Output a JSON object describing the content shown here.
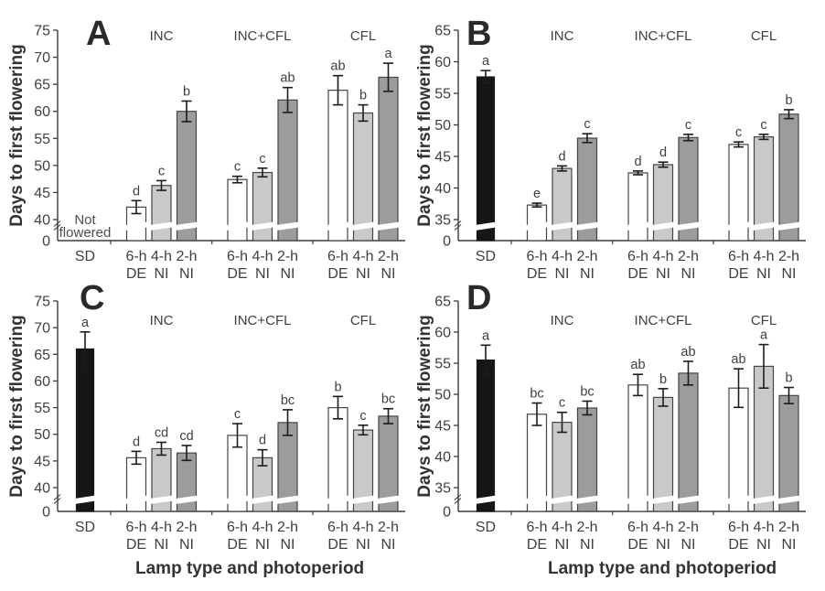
{
  "figure": {
    "xlabel": "Lamp type and photoperiod",
    "ylabel": "Days to first flowering",
    "panel_labels": [
      "A",
      "B",
      "C",
      "D"
    ]
  },
  "colors": {
    "black": "#161616",
    "white": "#ffffff",
    "light": "#c9c9c9",
    "dark": "#9c9c9c",
    "stroke": "#454545",
    "axis": "#3a3a3a",
    "text": "#3f3f3f",
    "error": "#1c1c1c",
    "background": "#ffffff"
  },
  "shade_key": {
    "SD": "black",
    "6-h DE": "white",
    "4-h NI": "light",
    "2-h NI": "dark"
  },
  "chart_data": [
    {
      "panel": "A",
      "type": "bar",
      "ylabel": "Days to first flowering",
      "xlabel": "",
      "ylim": [
        40,
        75
      ],
      "yticks": [
        75,
        70,
        65,
        60,
        55,
        50,
        45,
        40
      ],
      "baseline_tick_label": "0",
      "axis_break": true,
      "grid": false,
      "group_headers": [
        "INC",
        "INC+CFL",
        "CFL"
      ],
      "bars": [
        {
          "tick": "SD",
          "tick2": "",
          "group": "",
          "shade": "black",
          "value": null,
          "err": null,
          "letter": "",
          "note": "Not flowered"
        },
        {
          "tick": "6-h",
          "tick2": "DE",
          "group": "INC",
          "shade": "white",
          "value": 42.3,
          "err": 1.2,
          "letter": "d"
        },
        {
          "tick": "4-h",
          "tick2": "NI",
          "group": "INC",
          "shade": "light",
          "value": 46.3,
          "err": 0.9,
          "letter": "c"
        },
        {
          "tick": "2-h",
          "tick2": "NI",
          "group": "INC",
          "shade": "dark",
          "value": 60.0,
          "err": 1.9,
          "letter": "b"
        },
        {
          "tick": "6-h",
          "tick2": "DE",
          "group": "INC+CFL",
          "shade": "white",
          "value": 47.4,
          "err": 0.6,
          "letter": "c"
        },
        {
          "tick": "4-h",
          "tick2": "NI",
          "group": "INC+CFL",
          "shade": "light",
          "value": 48.7,
          "err": 0.8,
          "letter": "c"
        },
        {
          "tick": "2-h",
          "tick2": "NI",
          "group": "INC+CFL",
          "shade": "dark",
          "value": 62.1,
          "err": 2.3,
          "letter": "ab"
        },
        {
          "tick": "6-h",
          "tick2": "DE",
          "group": "CFL",
          "shade": "white",
          "value": 63.9,
          "err": 2.7,
          "letter": "ab"
        },
        {
          "tick": "4-h",
          "tick2": "NI",
          "group": "CFL",
          "shade": "light",
          "value": 59.7,
          "err": 1.5,
          "letter": "b"
        },
        {
          "tick": "2-h",
          "tick2": "NI",
          "group": "CFL",
          "shade": "dark",
          "value": 66.3,
          "err": 2.6,
          "letter": "a"
        }
      ]
    },
    {
      "panel": "B",
      "type": "bar",
      "ylabel": "Days to first flowering",
      "xlabel": "",
      "ylim": [
        35,
        65
      ],
      "yticks": [
        65,
        60,
        55,
        50,
        45,
        40,
        35
      ],
      "baseline_tick_label": "0",
      "axis_break": true,
      "grid": false,
      "group_headers": [
        "INC",
        "INC+CFL",
        "CFL"
      ],
      "bars": [
        {
          "tick": "SD",
          "tick2": "",
          "group": "",
          "shade": "black",
          "value": 57.6,
          "err": 1.0,
          "letter": "a"
        },
        {
          "tick": "6-h",
          "tick2": "DE",
          "group": "INC",
          "shade": "white",
          "value": 37.3,
          "err": 0.3,
          "letter": "e"
        },
        {
          "tick": "4-h",
          "tick2": "NI",
          "group": "INC",
          "shade": "light",
          "value": 43.1,
          "err": 0.4,
          "letter": "d"
        },
        {
          "tick": "2-h",
          "tick2": "NI",
          "group": "INC",
          "shade": "dark",
          "value": 47.9,
          "err": 0.7,
          "letter": "c"
        },
        {
          "tick": "6-h",
          "tick2": "DE",
          "group": "INC+CFL",
          "shade": "white",
          "value": 42.4,
          "err": 0.3,
          "letter": "d"
        },
        {
          "tick": "4-h",
          "tick2": "NI",
          "group": "INC+CFL",
          "shade": "light",
          "value": 43.7,
          "err": 0.4,
          "letter": "d"
        },
        {
          "tick": "2-h",
          "tick2": "NI",
          "group": "INC+CFL",
          "shade": "dark",
          "value": 48.0,
          "err": 0.5,
          "letter": "c"
        },
        {
          "tick": "6-h",
          "tick2": "DE",
          "group": "CFL",
          "shade": "white",
          "value": 46.9,
          "err": 0.4,
          "letter": "c"
        },
        {
          "tick": "4-h",
          "tick2": "NI",
          "group": "CFL",
          "shade": "light",
          "value": 48.1,
          "err": 0.4,
          "letter": "c"
        },
        {
          "tick": "2-h",
          "tick2": "NI",
          "group": "CFL",
          "shade": "dark",
          "value": 51.7,
          "err": 0.7,
          "letter": "b"
        }
      ]
    },
    {
      "panel": "C",
      "type": "bar",
      "ylabel": "Days to first flowering",
      "xlabel": "Lamp type and photoperiod",
      "ylim": [
        40,
        75
      ],
      "yticks": [
        75,
        70,
        65,
        60,
        55,
        50,
        45,
        40
      ],
      "baseline_tick_label": "0",
      "axis_break": true,
      "grid": false,
      "group_headers": [
        "INC",
        "INC+CFL",
        "CFL"
      ],
      "bars": [
        {
          "tick": "SD",
          "tick2": "",
          "group": "",
          "shade": "black",
          "value": 66.0,
          "err": 3.2,
          "letter": "a"
        },
        {
          "tick": "6-h",
          "tick2": "DE",
          "group": "INC",
          "shade": "white",
          "value": 45.6,
          "err": 1.2,
          "letter": "d"
        },
        {
          "tick": "4-h",
          "tick2": "NI",
          "group": "INC",
          "shade": "light",
          "value": 47.3,
          "err": 1.2,
          "letter": "cd"
        },
        {
          "tick": "2-h",
          "tick2": "NI",
          "group": "INC",
          "shade": "dark",
          "value": 46.5,
          "err": 1.4,
          "letter": "cd"
        },
        {
          "tick": "6-h",
          "tick2": "DE",
          "group": "INC+CFL",
          "shade": "white",
          "value": 49.8,
          "err": 2.2,
          "letter": "c"
        },
        {
          "tick": "4-h",
          "tick2": "NI",
          "group": "INC+CFL",
          "shade": "light",
          "value": 45.6,
          "err": 1.5,
          "letter": "d"
        },
        {
          "tick": "2-h",
          "tick2": "NI",
          "group": "INC+CFL",
          "shade": "dark",
          "value": 52.2,
          "err": 2.4,
          "letter": "bc"
        },
        {
          "tick": "6-h",
          "tick2": "DE",
          "group": "CFL",
          "shade": "white",
          "value": 55.0,
          "err": 2.1,
          "letter": "b"
        },
        {
          "tick": "4-h",
          "tick2": "NI",
          "group": "CFL",
          "shade": "light",
          "value": 50.8,
          "err": 0.9,
          "letter": "c"
        },
        {
          "tick": "2-h",
          "tick2": "NI",
          "group": "CFL",
          "shade": "dark",
          "value": 53.4,
          "err": 1.4,
          "letter": "bc"
        }
      ]
    },
    {
      "panel": "D",
      "type": "bar",
      "ylabel": "Days to first flowering",
      "xlabel": "Lamp type and photoperiod",
      "ylim": [
        35,
        65
      ],
      "yticks": [
        65,
        60,
        55,
        50,
        45,
        40,
        35
      ],
      "baseline_tick_label": "0",
      "axis_break": true,
      "grid": false,
      "group_headers": [
        "INC",
        "INC+CFL",
        "CFL"
      ],
      "bars": [
        {
          "tick": "SD",
          "tick2": "",
          "group": "",
          "shade": "black",
          "value": 55.5,
          "err": 2.4,
          "letter": "a"
        },
        {
          "tick": "6-h",
          "tick2": "DE",
          "group": "INC",
          "shade": "white",
          "value": 46.8,
          "err": 1.8,
          "letter": "bc"
        },
        {
          "tick": "4-h",
          "tick2": "NI",
          "group": "INC",
          "shade": "light",
          "value": 45.5,
          "err": 1.6,
          "letter": "c"
        },
        {
          "tick": "2-h",
          "tick2": "NI",
          "group": "INC",
          "shade": "dark",
          "value": 47.8,
          "err": 1.1,
          "letter": "bc"
        },
        {
          "tick": "6-h",
          "tick2": "DE",
          "group": "INC+CFL",
          "shade": "white",
          "value": 51.5,
          "err": 1.7,
          "letter": "ab"
        },
        {
          "tick": "4-h",
          "tick2": "NI",
          "group": "INC+CFL",
          "shade": "light",
          "value": 49.5,
          "err": 1.4,
          "letter": "b"
        },
        {
          "tick": "2-h",
          "tick2": "NI",
          "group": "INC+CFL",
          "shade": "dark",
          "value": 53.4,
          "err": 1.9,
          "letter": "ab"
        },
        {
          "tick": "6-h",
          "tick2": "DE",
          "group": "CFL",
          "shade": "white",
          "value": 51.0,
          "err": 3.1,
          "letter": "ab"
        },
        {
          "tick": "4-h",
          "tick2": "NI",
          "group": "CFL",
          "shade": "light",
          "value": 54.5,
          "err": 3.5,
          "letter": "a"
        },
        {
          "tick": "2-h",
          "tick2": "NI",
          "group": "CFL",
          "shade": "dark",
          "value": 49.8,
          "err": 1.3,
          "letter": "b"
        }
      ]
    }
  ]
}
